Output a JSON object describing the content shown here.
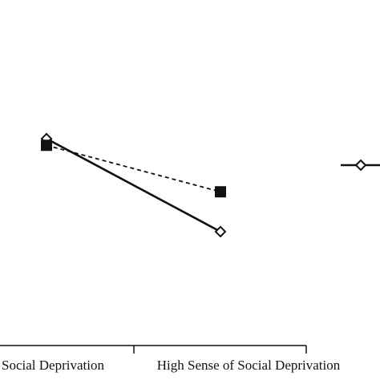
{
  "chart_data": {
    "type": "line",
    "categories": [
      "Social Deprivation",
      "High Sense of Social Deprivation"
    ],
    "series": [
      {
        "color": "#111111",
        "values": [
          4.0,
          2.6
        ],
        "dash": false,
        "marker": "diamond"
      },
      {
        "color": "#111111",
        "values": [
          3.9,
          3.2
        ],
        "dash": true,
        "marker": "square"
      }
    ]
  }
}
